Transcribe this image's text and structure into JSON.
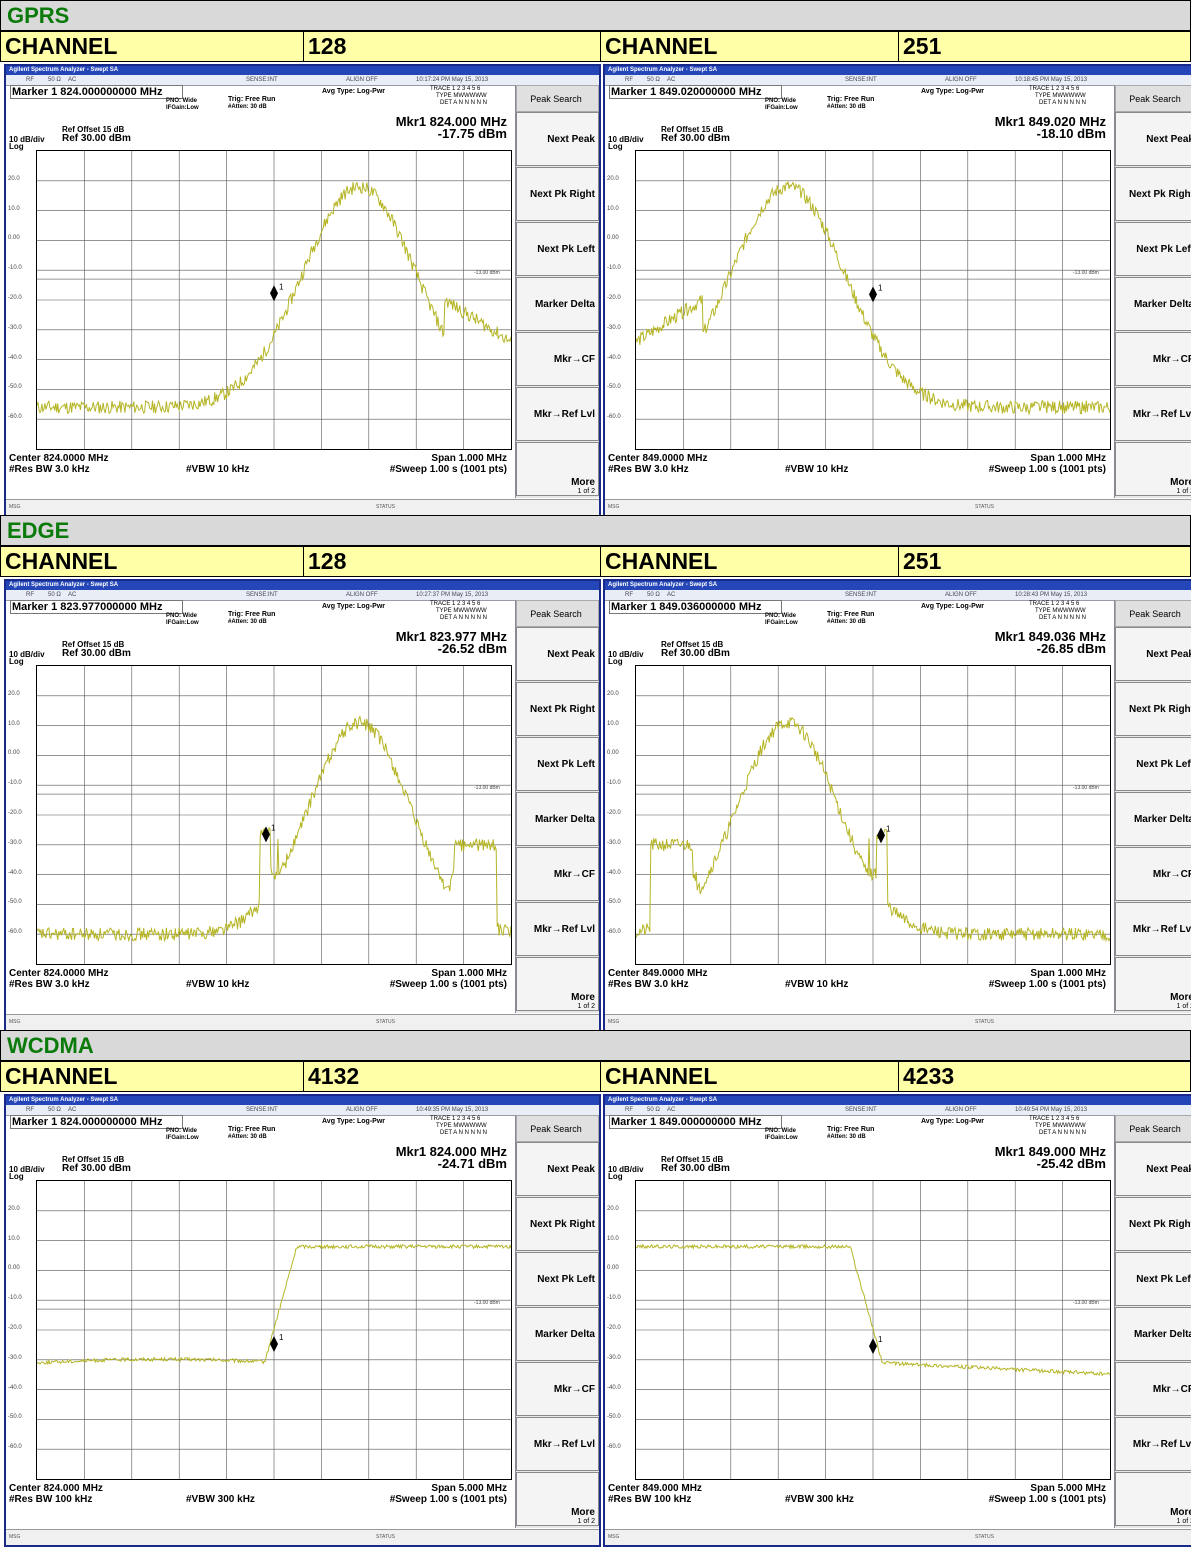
{
  "sections": [
    {
      "label": "GPRS",
      "channel_label": "CHANNEL",
      "panels": [
        {
          "channel": "128",
          "title": "Agilent Spectrum Analyzer - Swept SA",
          "rf": "RF",
          "ohm": "50 Ω",
          "ac": "AC",
          "sense": "SENSE:INT",
          "align": "ALIGN OFF",
          "time": "10:17:24 PM May 15, 2013",
          "marker": "Marker 1 824.000000000 MHz",
          "pno": "PNO: Wide",
          "ifgain": "IFGain:Low",
          "trig": "Trig: Free Run",
          "atten": "#Atten: 30 dB",
          "avg": "Avg Type: Log-Pwr",
          "trace": "TRACE 1 2 3 4 5 6",
          "type": "TYPE MWWWWW",
          "det": "DET A N N N N N",
          "refoffset": "Ref Offset 15 dB",
          "scale": "10 dB/div",
          "ref": "Ref 30.00 dBm",
          "log": "Log",
          "mkr_freq": "Mkr1 824.000 MHz",
          "mkr_val": "-17.75 dBm",
          "center": "Center 824.0000 MHz",
          "rbw": "#Res BW 3.0 kHz",
          "vbw": "#VBW 10 kHz",
          "span": "Span 1.000 MHz",
          "sweep": "#Sweep  1.00 s (1001 pts)",
          "msg": "MSG",
          "status": "STATUS",
          "limit": "-13.00 dBm"
        },
        {
          "channel": "251",
          "title": "Agilent Spectrum Analyzer - Swept SA",
          "rf": "RF",
          "ohm": "50 Ω",
          "ac": "AC",
          "sense": "SENSE:INT",
          "align": "ALIGN OFF",
          "time": "10:18:45 PM May 15, 2013",
          "marker": "Marker 1 849.020000000 MHz",
          "pno": "PNO: Wide",
          "ifgain": "IFGain:Low",
          "trig": "Trig: Free Run",
          "atten": "#Atten: 30 dB",
          "avg": "Avg Type: Log-Pwr",
          "trace": "TRACE 1 2 3 4 5 6",
          "type": "TYPE MWWWWW",
          "det": "DET A N N N N N",
          "refoffset": "Ref Offset 15 dB",
          "scale": "10 dB/div",
          "ref": "Ref 30.00 dBm",
          "log": "Log",
          "mkr_freq": "Mkr1 849.020 MHz",
          "mkr_val": "-18.10 dBm",
          "center": "Center 849.0000 MHz",
          "rbw": "#Res BW 3.0 kHz",
          "vbw": "#VBW 10 kHz",
          "span": "Span 1.000 MHz",
          "sweep": "#Sweep  1.00 s (1001 pts)",
          "msg": "MSG",
          "status": "STATUS",
          "limit": "-13.00 dBm"
        }
      ]
    },
    {
      "label": "EDGE",
      "channel_label": "CHANNEL",
      "panels": [
        {
          "channel": "128",
          "title": "Agilent Spectrum Analyzer - Swept SA",
          "rf": "RF",
          "ohm": "50 Ω",
          "ac": "AC",
          "sense": "SENSE:INT",
          "align": "ALIGN OFF",
          "time": "10:27:37 PM May 15, 2013",
          "marker": "Marker 1 823.977000000 MHz",
          "pno": "PNO: Wide",
          "ifgain": "IFGain:Low",
          "trig": "Trig: Free Run",
          "atten": "#Atten: 30 dB",
          "avg": "Avg Type: Log-Pwr",
          "trace": "TRACE 1 2 3 4 5 6",
          "type": "TYPE MWWWWW",
          "det": "DET A N N N N N",
          "refoffset": "Ref Offset 15 dB",
          "scale": "10 dB/div",
          "ref": "Ref 30.00 dBm",
          "log": "Log",
          "mkr_freq": "Mkr1 823.977 MHz",
          "mkr_val": "-26.52 dBm",
          "center": "Center 824.0000 MHz",
          "rbw": "#Res BW 3.0 kHz",
          "vbw": "#VBW 10 kHz",
          "span": "Span 1.000 MHz",
          "sweep": "#Sweep  1.00 s (1001 pts)",
          "msg": "MSG",
          "status": "STATUS",
          "limit": "-13.00 dBm"
        },
        {
          "channel": "251",
          "title": "Agilent Spectrum Analyzer - Swept SA",
          "rf": "RF",
          "ohm": "50 Ω",
          "ac": "AC",
          "sense": "SENSE:INT",
          "align": "ALIGN OFF",
          "time": "10:28:43 PM May 15, 2013",
          "marker": "Marker 1 849.036000000 MHz",
          "pno": "PNO: Wide",
          "ifgain": "IFGain:Low",
          "trig": "Trig: Free Run",
          "atten": "#Atten: 30 dB",
          "avg": "Avg Type: Log-Pwr",
          "trace": "TRACE 1 2 3 4 5 6",
          "type": "TYPE MWWWWW",
          "det": "DET A N N N N N",
          "refoffset": "Ref Offset 15 dB",
          "scale": "10 dB/div",
          "ref": "Ref 30.00 dBm",
          "log": "Log",
          "mkr_freq": "Mkr1 849.036 MHz",
          "mkr_val": "-26.85 dBm",
          "center": "Center 849.0000 MHz",
          "rbw": "#Res BW 3.0 kHz",
          "vbw": "#VBW 10 kHz",
          "span": "Span 1.000 MHz",
          "sweep": "#Sweep  1.00 s (1001 pts)",
          "msg": "MSG",
          "status": "STATUS",
          "limit": "-13.00 dBm"
        }
      ]
    },
    {
      "label": "WCDMA",
      "channel_label": "CHANNEL",
      "panels": [
        {
          "channel": "4132",
          "title": "Agilent Spectrum Analyzer - Swept SA",
          "rf": "RF",
          "ohm": "50 Ω",
          "ac": "AC",
          "sense": "SENSE:INT",
          "align": "ALIGN OFF",
          "time": "10:49:35 PM May 15, 2013",
          "marker": "Marker 1 824.000000000 MHz",
          "pno": "PNO: Wide",
          "ifgain": "IFGain:Low",
          "trig": "Trig: Free Run",
          "atten": "#Atten: 30 dB",
          "avg": "Avg Type: Log-Pwr",
          "trace": "TRACE 1 2 3 4 5 6",
          "type": "TYPE MWWWWW",
          "det": "DET A N N N N N",
          "refoffset": "Ref Offset 15 dB",
          "scale": "10 dB/div",
          "ref": "Ref 30.00 dBm",
          "log": "Log",
          "mkr_freq": "Mkr1 824.000 MHz",
          "mkr_val": "-24.71 dBm",
          "center": "Center 824.000 MHz",
          "rbw": "#Res BW 100 kHz",
          "vbw": "#VBW 300 kHz",
          "span": "Span 5.000 MHz",
          "sweep": "#Sweep  1.00 s (1001 pts)",
          "msg": "MSG",
          "status": "STATUS",
          "limit": "-13.00 dBm"
        },
        {
          "channel": "4233",
          "title": "Agilent Spectrum Analyzer - Swept SA",
          "rf": "RF",
          "ohm": "50 Ω",
          "ac": "AC",
          "sense": "SENSE:INT",
          "align": "ALIGN OFF",
          "time": "10:49:54 PM May 15, 2013",
          "marker": "Marker 1 849.000000000 MHz",
          "pno": "PNO: Wide",
          "ifgain": "IFGain:Low",
          "trig": "Trig: Free Run",
          "atten": "#Atten: 30 dB",
          "avg": "Avg Type: Log-Pwr",
          "trace": "TRACE 1 2 3 4 5 6",
          "type": "TYPE MWWWWW",
          "det": "DET A N N N N N",
          "refoffset": "Ref Offset 15 dB",
          "scale": "10 dB/div",
          "ref": "Ref 30.00 dBm",
          "log": "Log",
          "mkr_freq": "Mkr1 849.000 MHz",
          "mkr_val": "-25.42 dBm",
          "center": "Center 849.000 MHz",
          "rbw": "#Res BW 100 kHz",
          "vbw": "#VBW 300 kHz",
          "span": "Span 5.000 MHz",
          "sweep": "#Sweep  1.00 s (1001 pts)",
          "msg": "MSG",
          "status": "STATUS",
          "limit": "-13.00 dBm"
        }
      ]
    }
  ],
  "softkeys": [
    "Peak Search",
    "Next Peak",
    "Next Pk Right",
    "Next Pk Left",
    "Marker Delta",
    "Mkr→CF",
    "Mkr→Ref Lvl",
    "More",
    "1 of 2"
  ],
  "y_ticks": [
    "20.0",
    "10.0",
    "0.00",
    "-10.0",
    "-20.0",
    "-30.0",
    "-40.0",
    "-50.0",
    "-60.0"
  ],
  "colors": {
    "band_bg": "#d9d9d9",
    "band_text": "#0a7a0a",
    "channel_bg": "#ffffa8",
    "trace": "#b5b526",
    "frame": "#1a2a8a",
    "titlebar": "#2446b8"
  }
}
